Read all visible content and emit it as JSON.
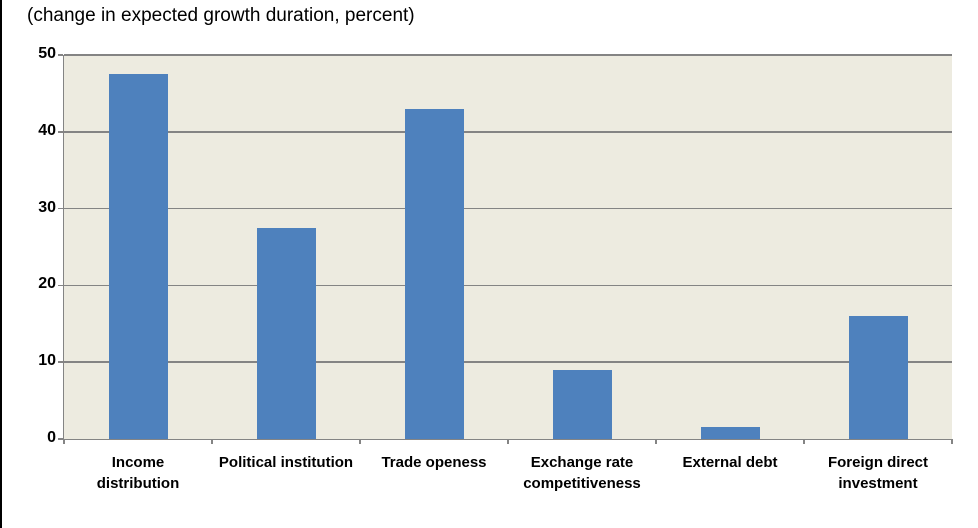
{
  "chart": {
    "title": "(change in expected growth duration, percent)"
  },
  "chart_data": {
    "type": "bar",
    "title": "(change in expected growth duration, percent)",
    "categories": [
      "Income\ndistribution",
      "Political institution",
      "Trade openess",
      "Exchange rate\ncompetitiveness",
      "External debt",
      "Foreign direct\ninvestment"
    ],
    "values": [
      47.5,
      27.5,
      43,
      9,
      1.5,
      16
    ],
    "xlabel": "",
    "ylabel": "",
    "ylim": [
      0,
      50
    ],
    "yticks": [
      0,
      10,
      20,
      30,
      40,
      50
    ],
    "grid": true,
    "legend": false,
    "colors": {
      "bar": "#4E81BD",
      "plot_background": "#EDEBE0",
      "gridline": "#848484",
      "axis": "#848484",
      "text": "#000000",
      "page_background": "#ffffff",
      "left_edge_border": "#000000"
    }
  }
}
